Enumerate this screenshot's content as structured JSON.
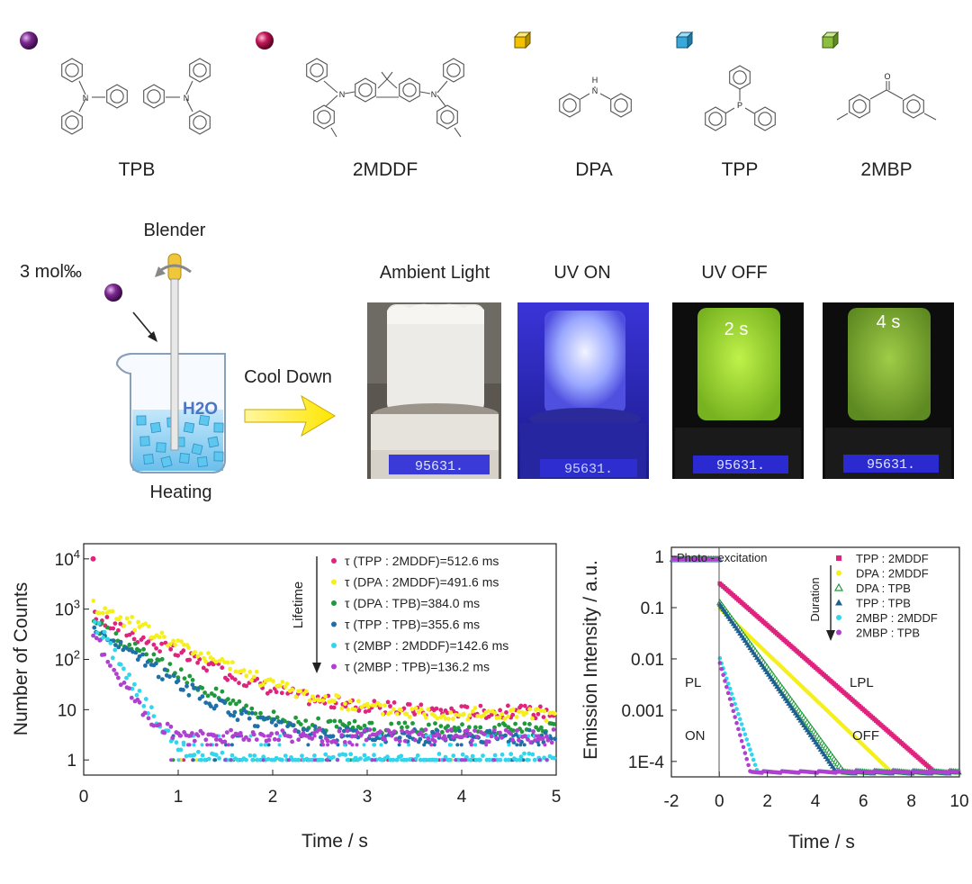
{
  "molecules": [
    {
      "name": "TPB",
      "marker": "sphere",
      "color": "#7a2a8e"
    },
    {
      "name": "2MDDF",
      "marker": "sphere",
      "color": "#c2185b"
    },
    {
      "name": "DPA",
      "marker": "cube",
      "color": "#f2c200"
    },
    {
      "name": "TPP",
      "marker": "cube",
      "color": "#39a9dc"
    },
    {
      "name": "2MBP",
      "marker": "cube",
      "color": "#8cbf3f"
    }
  ],
  "atom_labels": {
    "n": "N",
    "h": "H",
    "p": "P",
    "o": "O"
  },
  "schematic": {
    "blender": "Blender",
    "dopant": "3 mol‰",
    "water": "H2O",
    "heating": "Heating",
    "cool_down": "Cool Down"
  },
  "photos": [
    {
      "label": "Ambient Light",
      "overlay": "",
      "display": "95631.",
      "scene": "ambient"
    },
    {
      "label": "UV ON",
      "overlay": "",
      "display": "95631.",
      "scene": "uv"
    },
    {
      "label": "UV OFF",
      "overlay": "2 s",
      "display": "95631.",
      "scene": "green-bright"
    },
    {
      "label": "",
      "overlay": "4 s",
      "display": "95631.",
      "scene": "green-dim"
    }
  ],
  "chart_data": [
    {
      "type": "scatter",
      "title": "",
      "xlabel": "Time / s",
      "ylabel": "Number of Counts",
      "xlim": [
        0,
        5
      ],
      "ylim": [
        0.5,
        20000
      ],
      "yscale": "log",
      "xticks": [
        0,
        1,
        2,
        3,
        4,
        5
      ],
      "yticks": [
        {
          "v": 1,
          "t": "1"
        },
        {
          "v": 10,
          "t": "10"
        },
        {
          "v": 100,
          "t": "10",
          "sup": "2"
        },
        {
          "v": 1000,
          "t": "10",
          "sup": "3"
        },
        {
          "v": 10000,
          "t": "10",
          "sup": "4"
        }
      ],
      "legend_position": "top-right",
      "arrow_label": "Lifetime",
      "series": [
        {
          "name": "τ (TPP : 2MDDF)=512.6 ms",
          "color": "#e0237f",
          "lifetime_ms": 512.6,
          "peak": 700,
          "floor": 9
        },
        {
          "name": "τ (DPA : 2MDDF)=491.6 ms",
          "color": "#f5ef1c",
          "lifetime_ms": 491.6,
          "peak": 1200,
          "floor": 8
        },
        {
          "name": "τ (DPA : TPB)=384.0 ms",
          "color": "#1f9a3a",
          "lifetime_ms": 384.0,
          "peak": 500,
          "floor": 4
        },
        {
          "name": "τ (TPP : TPB)=355.6 ms",
          "color": "#1f6fa8",
          "lifetime_ms": 355.6,
          "peak": 400,
          "floor": 3
        },
        {
          "name": "τ (2MBP : 2MDDF)=142.6 ms",
          "color": "#31d6ec",
          "lifetime_ms": 142.6,
          "peak": 600,
          "floor": 1
        },
        {
          "name": "τ (2MBP : TPB)=136.2 ms",
          "color": "#b040d0",
          "lifetime_ms": 136.2,
          "peak": 300,
          "floor": 3
        }
      ]
    },
    {
      "type": "scatter",
      "title": "",
      "xlabel": "Time / s",
      "ylabel": "Emission Intensity / a.u.",
      "xlim": [
        -2,
        10
      ],
      "ylim": [
        5e-05,
        1.5
      ],
      "yscale": "log",
      "xticks": [
        -2,
        0,
        2,
        4,
        6,
        8,
        10
      ],
      "yticks": [
        {
          "v": 1,
          "t": "1"
        },
        {
          "v": 0.1,
          "t": "0.1"
        },
        {
          "v": 0.01,
          "t": "0.01"
        },
        {
          "v": 0.001,
          "t": "0.001"
        },
        {
          "v": 0.0001,
          "t": "1E-4"
        }
      ],
      "legend_position": "top-right",
      "arrow_label": "Duration",
      "annotations": {
        "photo_excitation": "Photo - excitation",
        "pl": "PL",
        "on": "ON",
        "lpl": "LPL",
        "off": "OFF"
      },
      "series": [
        {
          "name": "TPP : 2MDDF",
          "color": "#e0237f",
          "marker": "square",
          "start": 0.3,
          "end_time": 9.0
        },
        {
          "name": "DPA : 2MDDF",
          "color": "#f5ef1c",
          "marker": "circle",
          "start": 0.1,
          "end_time": 7.2
        },
        {
          "name": "DPA : TPB",
          "color": "#1f9a3a",
          "marker": "triangle-open",
          "start": 0.13,
          "end_time": 5.2
        },
        {
          "name": "TPP : TPB",
          "color": "#1f5f90",
          "marker": "triangle",
          "start": 0.12,
          "end_time": 4.9
        },
        {
          "name": "2MBP : 2MDDF",
          "color": "#31d6ec",
          "marker": "star",
          "start": 0.011,
          "end_time": 1.6
        },
        {
          "name": "2MBP : TPB",
          "color": "#b040d0",
          "marker": "circle",
          "start": 0.009,
          "end_time": 1.3
        }
      ]
    }
  ]
}
